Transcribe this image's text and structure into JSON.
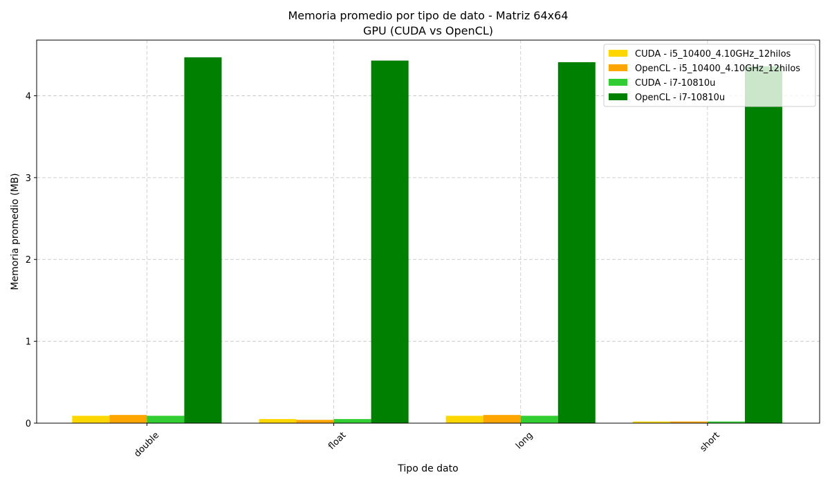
{
  "chart_data": {
    "type": "bar",
    "title": "Memoria promedio por tipo de dato - Matriz 64x64",
    "subtitle": "GPU (CUDA vs OpenCL)",
    "xlabel": "Tipo de dato",
    "ylabel": "Memoria promedio (MB)",
    "categories": [
      "double",
      "float",
      "long",
      "short"
    ],
    "ylim": [
      0,
      4.68
    ],
    "yticks": [
      0,
      1,
      2,
      3,
      4
    ],
    "grid": true,
    "legend_position": "top-right",
    "series": [
      {
        "name": "CUDA - i5_10400_4.10GHz_12hilos",
        "color": "#FFD700",
        "values": [
          0.09,
          0.05,
          0.09,
          0.02
        ]
      },
      {
        "name": "OpenCL - i5_10400_4.10GHz_12hilos",
        "color": "#FFA500",
        "values": [
          0.1,
          0.04,
          0.1,
          0.02
        ]
      },
      {
        "name": "CUDA - i7-10810u",
        "color": "#32CD32",
        "values": [
          0.09,
          0.05,
          0.09,
          0.02
        ]
      },
      {
        "name": "OpenCL - i7-10810u",
        "color": "#008000",
        "values": [
          4.47,
          4.43,
          4.41,
          4.36
        ]
      }
    ]
  }
}
